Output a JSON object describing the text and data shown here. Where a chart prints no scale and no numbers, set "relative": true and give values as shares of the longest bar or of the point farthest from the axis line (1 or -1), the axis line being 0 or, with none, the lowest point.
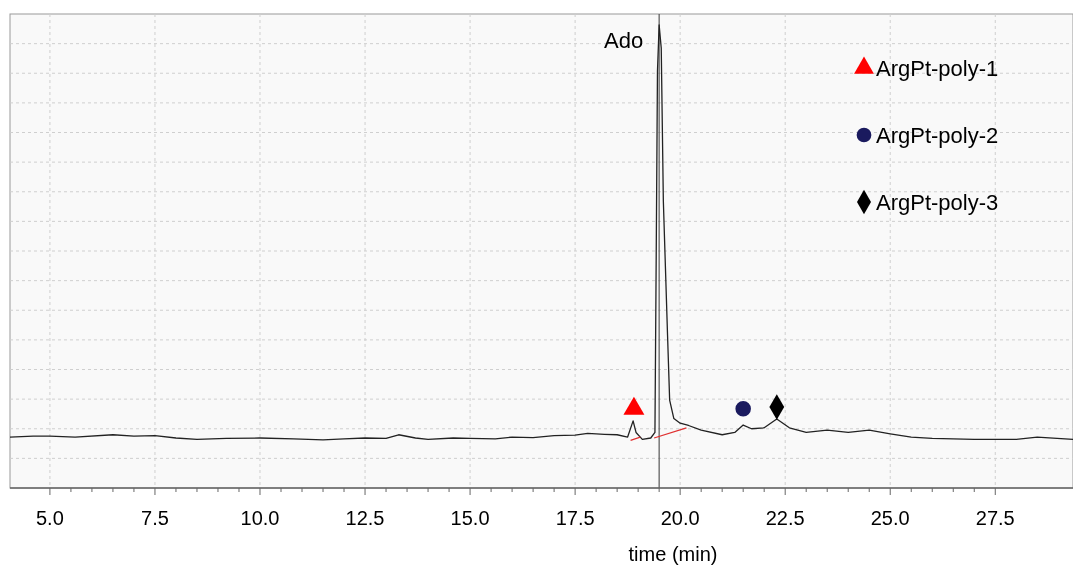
{
  "chart_data": {
    "type": "line",
    "relative": true,
    "xlabel": "time (min)",
    "xlim": [
      4.05,
      29.35
    ],
    "xticks": [
      {
        "value": 5,
        "label": "5.0"
      },
      {
        "value": 7.5,
        "label": "7.5"
      },
      {
        "value": 10,
        "label": "10.0"
      },
      {
        "value": 12.5,
        "label": "12.5"
      },
      {
        "value": 15,
        "label": "15.0"
      },
      {
        "value": 17.5,
        "label": "17.5"
      },
      {
        "value": 20,
        "label": "20.0"
      },
      {
        "value": 22.5,
        "label": "22.5"
      },
      {
        "value": 25,
        "label": "25.0"
      },
      {
        "value": 27.5,
        "label": "27.5"
      }
    ],
    "grid": true,
    "legend": "top right",
    "line_style": "solid",
    "ref_lines": [
      {
        "axis": "x",
        "value": 19.5,
        "label": "Ado",
        "color": "#555555"
      }
    ],
    "series": [
      {
        "type": "line",
        "color": "#222222",
        "marker": "none",
        "x": [
          4.05,
          4.6,
          5.0,
          5.6,
          6.5,
          7.0,
          7.5,
          8.0,
          8.5,
          9.2,
          10.0,
          10.8,
          11.5,
          12.0,
          12.5,
          13.0,
          13.3,
          13.7,
          14.0,
          14.6,
          15.0,
          15.6,
          16.0,
          16.5,
          17.0,
          17.5,
          17.8,
          18.2,
          18.5,
          18.75,
          18.88,
          18.95,
          19.1,
          19.3,
          19.4,
          19.43,
          19.46,
          19.5,
          19.55,
          19.6,
          19.7,
          19.75,
          19.85,
          20.0,
          20.2,
          20.5,
          21.0,
          21.3,
          21.5,
          21.7,
          22.0,
          22.3,
          22.6,
          23.0,
          23.5,
          24.0,
          24.5,
          25.0,
          25.5,
          26.0,
          27.0,
          28.0,
          28.5,
          29.35
        ],
        "values": [
          0.11,
          0.112,
          0.112,
          0.11,
          0.115,
          0.112,
          0.113,
          0.108,
          0.105,
          0.107,
          0.108,
          0.106,
          0.104,
          0.106,
          0.108,
          0.107,
          0.115,
          0.108,
          0.105,
          0.108,
          0.107,
          0.106,
          0.11,
          0.109,
          0.113,
          0.114,
          0.118,
          0.116,
          0.115,
          0.11,
          0.145,
          0.12,
          0.105,
          0.108,
          0.12,
          0.5,
          0.9,
          1.0,
          0.95,
          0.62,
          0.33,
          0.19,
          0.15,
          0.14,
          0.135,
          0.125,
          0.115,
          0.12,
          0.136,
          0.128,
          0.13,
          0.149,
          0.13,
          0.12,
          0.125,
          0.12,
          0.125,
          0.117,
          0.11,
          0.107,
          0.105,
          0.105,
          0.11,
          0.105
        ]
      },
      {
        "type": "line",
        "color": "#e03030",
        "marker": "none",
        "x": [
          18.82,
          19.05,
          19.1,
          19.38,
          20.15
        ],
        "values": [
          0.103,
          0.11,
          null,
          0.108,
          0.13
        ]
      },
      {
        "type": "scatter",
        "name": "ArgPt-poly-1",
        "color": "#ff0000",
        "marker": "triangle",
        "x": [
          18.9
        ],
        "values": [
          0.171
        ]
      },
      {
        "type": "scatter",
        "name": "ArgPt-poly-2",
        "color": "#1a1a5e",
        "marker": "circle",
        "x": [
          21.5
        ],
        "values": [
          0.171
        ]
      },
      {
        "type": "scatter",
        "name": "ArgPt-poly-3",
        "color": "#000000",
        "marker": "diamond",
        "x": [
          22.3
        ],
        "values": [
          0.175
        ]
      }
    ]
  }
}
